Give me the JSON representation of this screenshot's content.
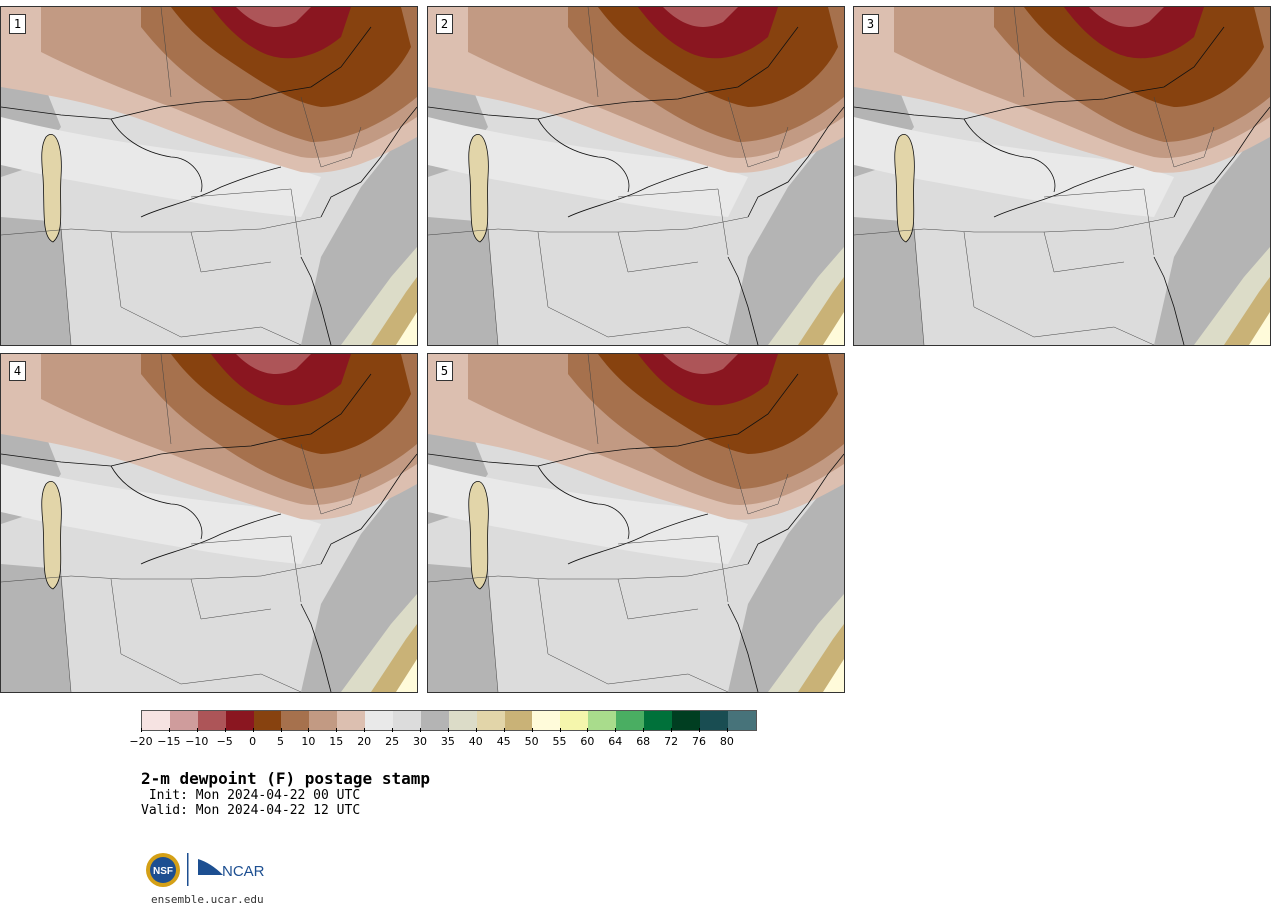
{
  "panels": [
    {
      "label": "1"
    },
    {
      "label": "2"
    },
    {
      "label": "3"
    },
    {
      "label": "4"
    },
    {
      "label": "5"
    }
  ],
  "colorbar": {
    "colors": [
      "#f6e3e2",
      "#cf9c9c",
      "#ad5558",
      "#8a1620",
      "#87420f",
      "#a6714d",
      "#c29a83",
      "#dcbfb0",
      "#e9e9e9",
      "#dcdcdc",
      "#b4b4b4",
      "#dcdcc8",
      "#e2d5a9",
      "#c9b277",
      "#fffbda",
      "#f5f6ac",
      "#a9dc8c",
      "#4aae62",
      "#00713a",
      "#003e21",
      "#194d52",
      "#47737a"
    ],
    "tick_labels": [
      "−20",
      "−15",
      "−10",
      "−5",
      "0",
      "5",
      "10",
      "15",
      "20",
      "25",
      "30",
      "35",
      "40",
      "45",
      "50",
      "55",
      "60",
      "64",
      "68",
      "72",
      "76",
      "80"
    ]
  },
  "title": "2-m dewpoint (F) postage stamp",
  "init_line": " Init: Mon 2024-04-22 00 UTC",
  "valid_line": "Valid: Mon 2024-04-22 12 UTC",
  "logo_texts": {
    "nsf": "NSF",
    "ncar": "NCAR"
  },
  "website": "ensemble.ucar.edu"
}
